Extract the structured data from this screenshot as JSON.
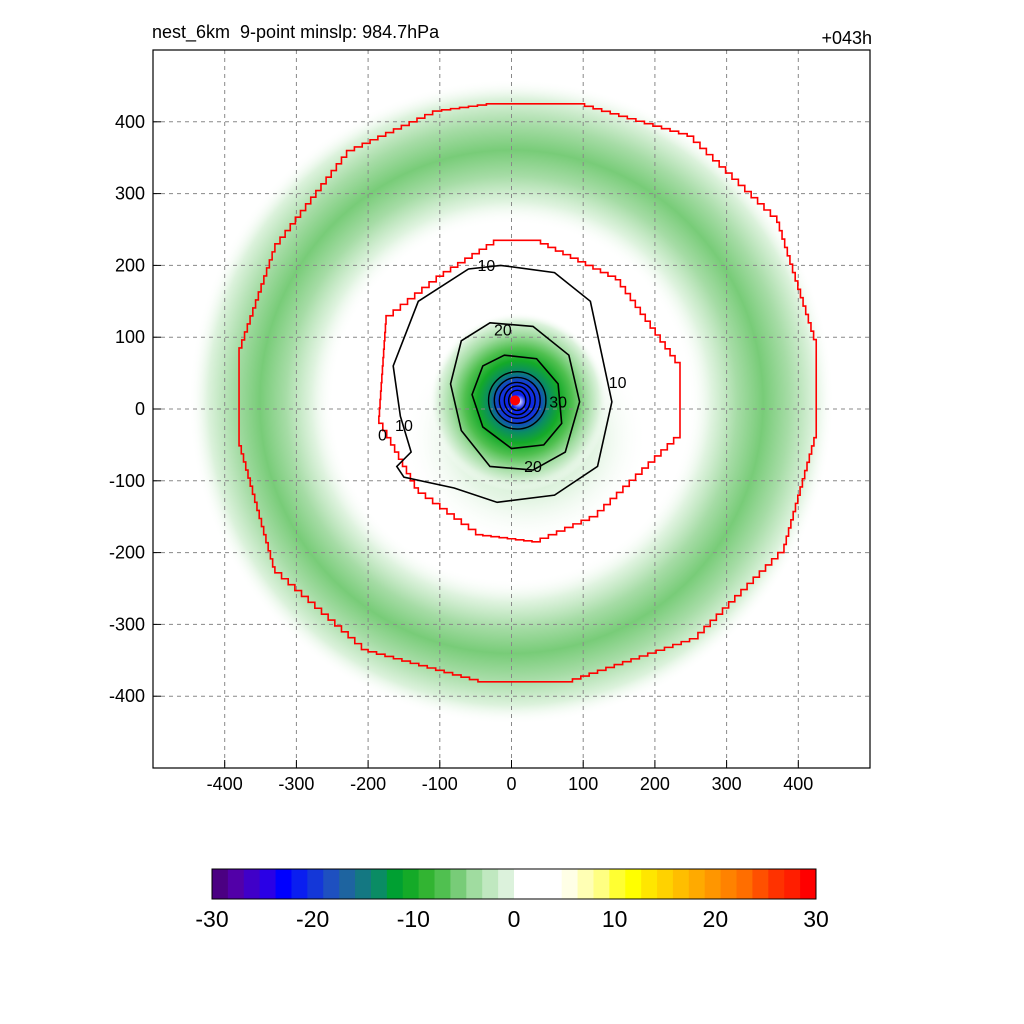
{
  "title_left": "nest_6km  9-point minslp: 984.7hPa",
  "title_right": "+043h",
  "chart_data": {
    "type": "heatmap",
    "title": "nest_6km  9-point minslp: 984.7hPa",
    "valid_time_label": "+043h",
    "xlabel": "",
    "ylabel": "",
    "xlim": [
      -500,
      500
    ],
    "ylim": [
      -500,
      500
    ],
    "x_ticks": [
      -400,
      -300,
      -200,
      -100,
      0,
      100,
      200,
      300,
      400
    ],
    "y_ticks": [
      400,
      300,
      200,
      100,
      0,
      -100,
      -200,
      -300,
      -400
    ],
    "x_tick_labels": [
      "-400",
      "-300",
      "-200",
      "-100",
      "0",
      "100",
      "200",
      "300",
      "400"
    ],
    "y_tick_labels": [
      "400",
      "300",
      "200",
      "100",
      "0",
      "-100",
      "-200",
      "-300",
      "-400"
    ],
    "grid": true,
    "center_marker": {
      "x": 5,
      "y": 12,
      "color": "#ff0000"
    },
    "filled_features": [
      {
        "name": "core",
        "center": [
          10,
          10
        ],
        "radius": 90,
        "value": -12
      },
      {
        "name": "inner-core-max",
        "center": [
          15,
          15
        ],
        "radius": 35,
        "value": -22
      },
      {
        "name": "outer-ring",
        "center": [
          0,
          10
        ],
        "radius": 330,
        "width": 120,
        "value": -6
      }
    ],
    "boundary_octagons": [
      {
        "name": "inner-boundary",
        "color": "#ff0000",
        "vertices": [
          [
            -25,
            235
          ],
          [
            30,
            235
          ],
          [
            145,
            180
          ],
          [
            235,
            55
          ],
          [
            235,
            -40
          ],
          [
            120,
            -150
          ],
          [
            40,
            -185
          ],
          [
            -40,
            -175
          ],
          [
            -130,
            -110
          ],
          [
            -185,
            -10
          ],
          [
            -175,
            130
          ],
          [
            -105,
            185
          ]
        ]
      },
      {
        "name": "outer-boundary",
        "color": "#ff0000",
        "vertices": [
          [
            -35,
            425
          ],
          [
            90,
            425
          ],
          [
            245,
            380
          ],
          [
            370,
            260
          ],
          [
            425,
            85
          ],
          [
            425,
            -40
          ],
          [
            380,
            -200
          ],
          [
            260,
            -320
          ],
          [
            85,
            -380
          ],
          [
            -35,
            -380
          ],
          [
            -200,
            -335
          ],
          [
            -330,
            -220
          ],
          [
            -380,
            -40
          ],
          [
            -380,
            85
          ],
          [
            -330,
            230
          ],
          [
            -230,
            360
          ],
          [
            -110,
            415
          ]
        ]
      }
    ],
    "contours": [
      {
        "level": 10,
        "labels": [
          "10",
          "10",
          "10"
        ],
        "color": "#000000"
      },
      {
        "level": 20,
        "labels": [
          "20",
          "20"
        ],
        "color": "#000000"
      },
      {
        "level": 30,
        "labels": [
          "30"
        ],
        "color": "#000000"
      },
      {
        "level": 0,
        "labels": [
          "0"
        ],
        "color": "#000000"
      }
    ],
    "colorbar": {
      "min": -30,
      "max": 30,
      "tick_values": [
        -30,
        -20,
        -10,
        0,
        10,
        20,
        30
      ],
      "tick_labels": [
        "-30",
        "-20",
        "-10",
        "0",
        "10",
        "20",
        "30"
      ],
      "colors": [
        "#4b0082",
        "#5200a8",
        "#4000c8",
        "#2a00e6",
        "#0000ff",
        "#0a1ef0",
        "#1437d8",
        "#1e50c0",
        "#1e64a0",
        "#147882",
        "#0a8c64",
        "#00a032",
        "#14aa28",
        "#32b432",
        "#50c050",
        "#78cc78",
        "#a0dca0",
        "#c0e8c0",
        "#dcf2dc",
        "#ffffff",
        "#ffffff",
        "#ffffff",
        "#ffffe6",
        "#ffffb4",
        "#ffff82",
        "#ffff32",
        "#ffff00",
        "#ffe600",
        "#ffd200",
        "#ffbe00",
        "#ffaa00",
        "#ff9600",
        "#ff8200",
        "#ff6e00",
        "#ff5000",
        "#ff3200",
        "#ff1e00",
        "#ff0000"
      ]
    }
  }
}
